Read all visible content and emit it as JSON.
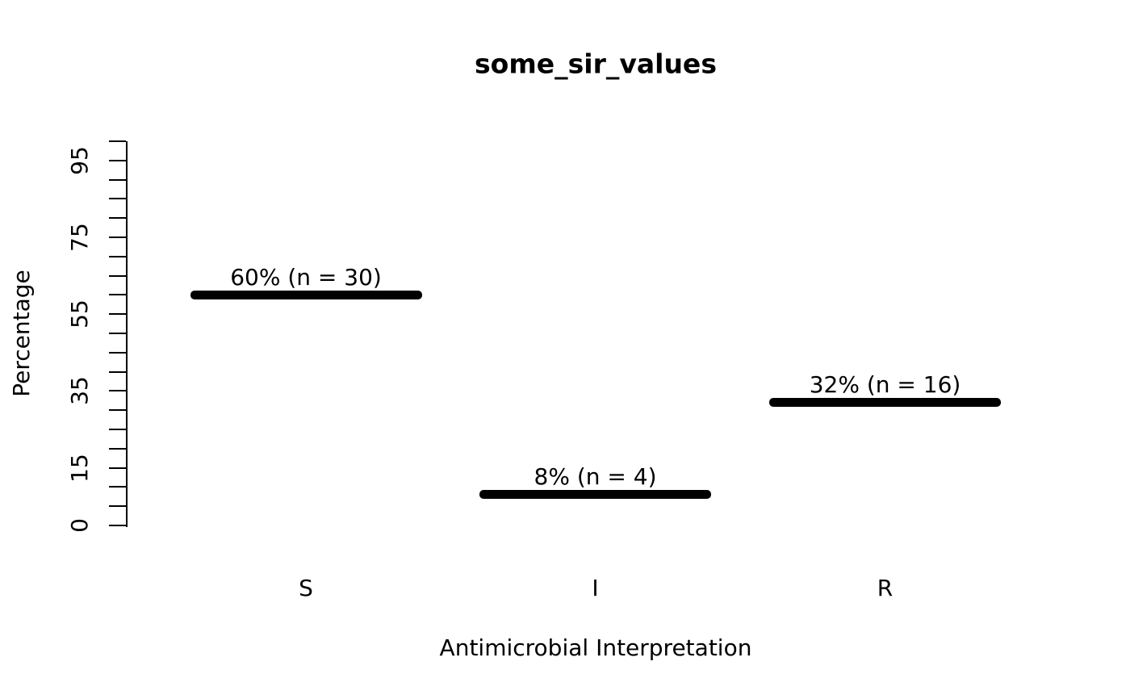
{
  "chart_data": {
    "type": "bar",
    "title": "some_sir_values",
    "xlabel": "Antimicrobial Interpretation",
    "ylabel": "Percentage",
    "categories": [
      "S",
      "I",
      "R"
    ],
    "values": [
      60,
      8,
      32
    ],
    "counts": [
      30,
      4,
      16
    ],
    "point_labels": [
      "60% (n = 30)",
      "8% (n = 4)",
      "32% (n = 16)"
    ],
    "ylim": [
      0,
      100
    ],
    "y_tick_step": 5,
    "y_tick_labels": [
      "0",
      "15",
      "35",
      "55",
      "75",
      "95"
    ],
    "y_tick_label_values": [
      0,
      15,
      35,
      55,
      75,
      95
    ],
    "grid": false,
    "legend": null,
    "bar_color": "#000000",
    "axis_color": "#000000",
    "text_color": "#000000",
    "background": "#ffffff"
  }
}
